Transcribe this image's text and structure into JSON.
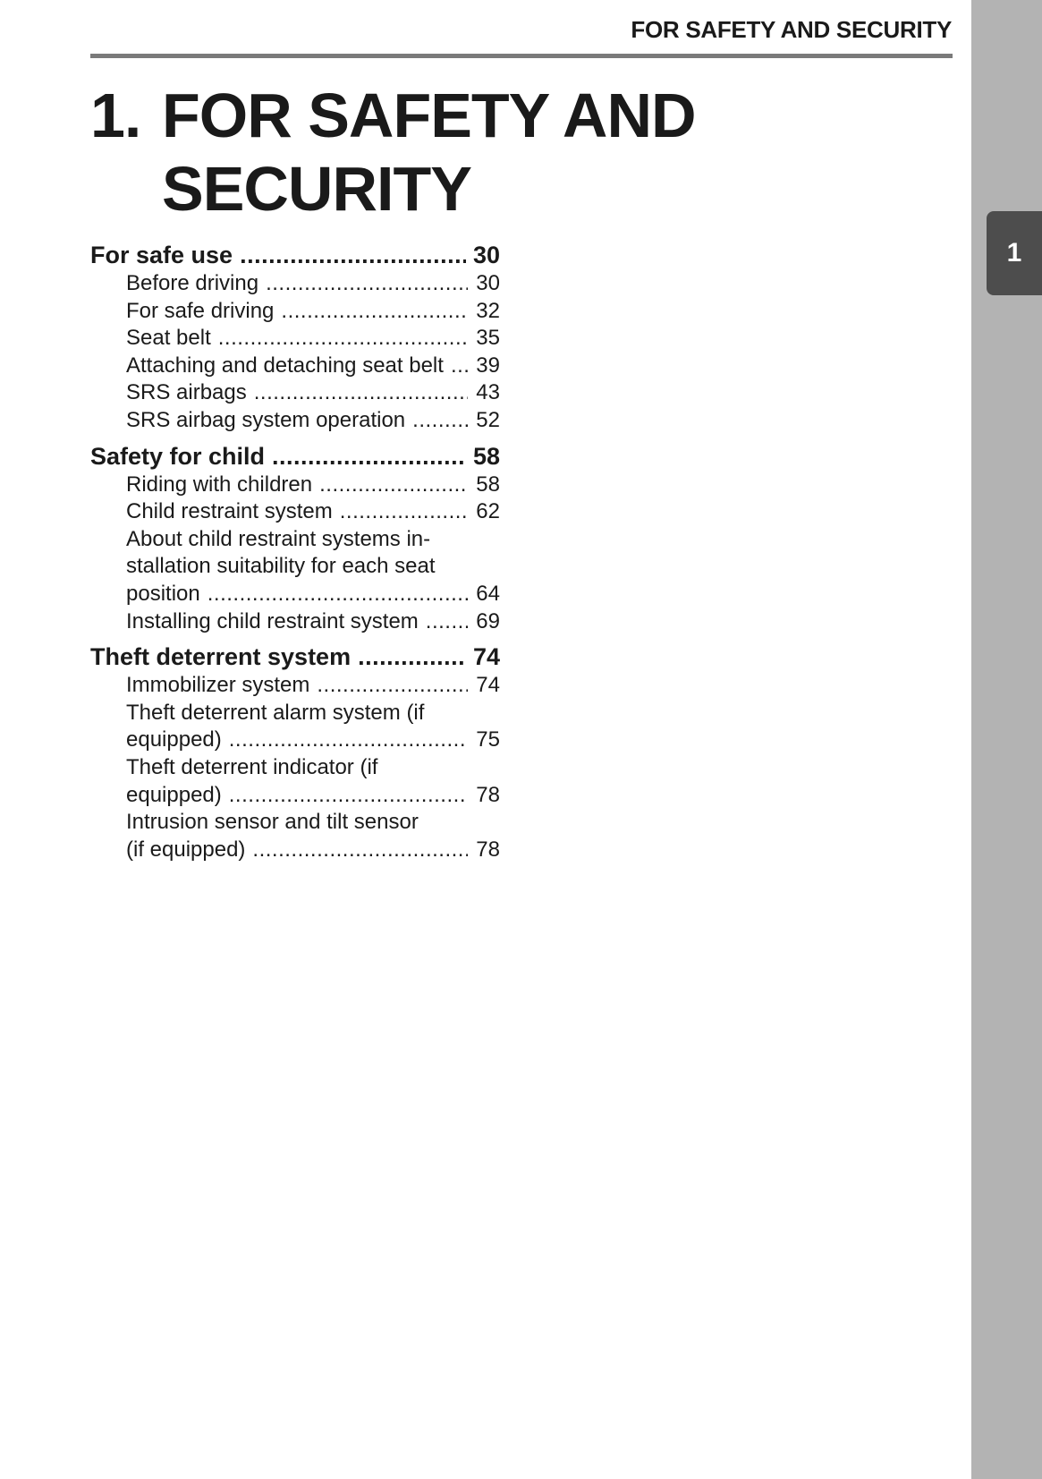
{
  "running_header": "FOR SAFETY AND SECURITY",
  "chapter_tab": "1",
  "title": {
    "number": "1.",
    "line1": "FOR SAFETY AND",
    "line2": "SECURITY"
  },
  "colors": {
    "side_band": "#b3b3b3",
    "tab": "#4d4d4d",
    "rule": "#7a7a7a"
  },
  "toc": [
    {
      "label": "For safe use",
      "page": "30",
      "items": [
        {
          "lines": [
            "Before driving"
          ],
          "page": "30"
        },
        {
          "lines": [
            "For safe driving"
          ],
          "page": "32"
        },
        {
          "lines": [
            "Seat belt"
          ],
          "page": "35"
        },
        {
          "lines": [
            "Attaching and detaching seat belt"
          ],
          "page": "39"
        },
        {
          "lines": [
            "SRS airbags"
          ],
          "page": "43"
        },
        {
          "lines": [
            "SRS airbag system operation"
          ],
          "page": "52"
        }
      ]
    },
    {
      "label": "Safety for child",
      "page": "58",
      "items": [
        {
          "lines": [
            "Riding with children"
          ],
          "page": "58"
        },
        {
          "lines": [
            "Child restraint system"
          ],
          "page": "62"
        },
        {
          "lines": [
            "About child restraint systems in-",
            "stallation suitability for each seat",
            "position"
          ],
          "page": "64"
        },
        {
          "lines": [
            "Installing child restraint system"
          ],
          "page": "69"
        }
      ]
    },
    {
      "label": "Theft deterrent system",
      "page": "74",
      "items": [
        {
          "lines": [
            "Immobilizer system"
          ],
          "page": "74"
        },
        {
          "lines": [
            "Theft deterrent alarm system (if",
            "equipped)"
          ],
          "page": "75"
        },
        {
          "lines": [
            "Theft deterrent indicator (if",
            "equipped)"
          ],
          "page": "78"
        },
        {
          "lines": [
            "Intrusion sensor and tilt sensor",
            "(if equipped)"
          ],
          "page": "78"
        }
      ]
    }
  ]
}
